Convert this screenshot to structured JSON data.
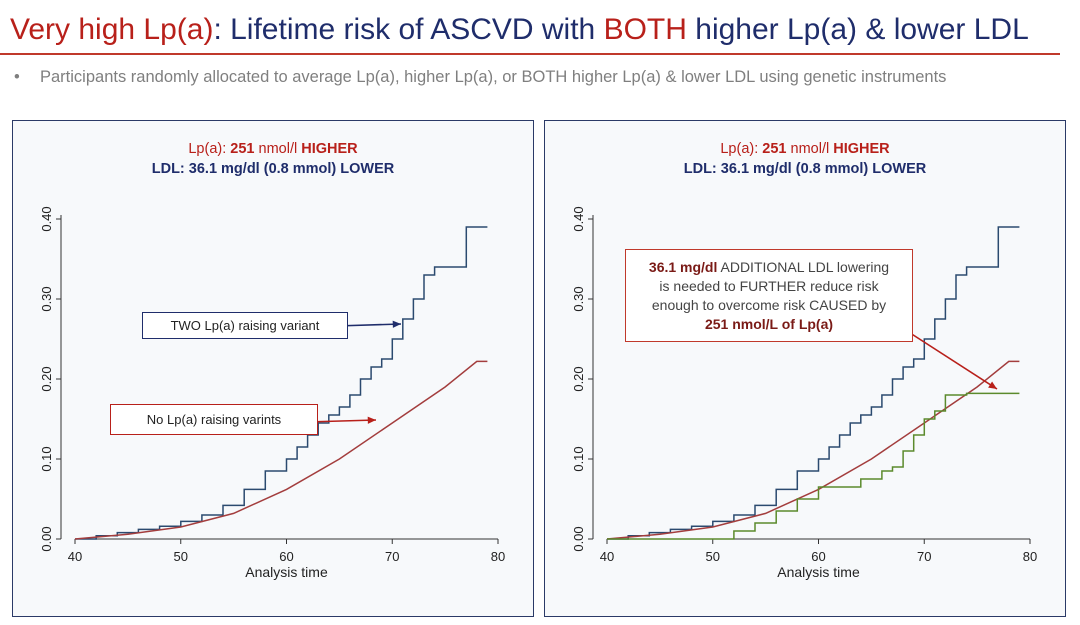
{
  "title": {
    "highlight": "Very high Lp(a)",
    "part1": ": Lifetime risk of ASCVD with ",
    "both": "BOTH",
    "part2": " higher Lp(a) & lower LDL"
  },
  "bullet": "Participants randomly allocated to average Lp(a), higher Lp(a), or BOTH higher Lp(a) & lower LDL using genetic instruments",
  "panels": [
    {
      "subtitle": {
        "prefix": "Lp(a): ",
        "value": "251",
        "unit": " nmol/l ",
        "tag": "HIGHER"
      },
      "ldl_line": "LDL: 36.1 mg/dl (0.8 mmol) LOWER",
      "annotations": {
        "two": "TWO Lp(a) raising variant",
        "no": "No Lp(a) raising varints"
      }
    },
    {
      "subtitle": {
        "prefix": "Lp(a): ",
        "value": "251",
        "unit": " nmol/l ",
        "tag": "HIGHER"
      },
      "ldl_line": "LDL: 36.1 mg/dl (0.8 mmol) LOWER",
      "annotation": {
        "l1_bold": "36.1 mg/dl",
        "l1_rest": " ADDITIONAL LDL lowering",
        "l2": "is needed to FURTHER reduce risk",
        "l3": "enough to overcome risk CAUSED by",
        "l4_bold": "251 nmol/L of Lp(a)"
      }
    }
  ],
  "chart_data": [
    {
      "type": "line",
      "xlabel": "Analysis time",
      "xlim": [
        40,
        80
      ],
      "ylim": [
        0,
        0.4
      ],
      "xticks": [
        "40",
        "50",
        "60",
        "70",
        "80"
      ],
      "yticks": [
        "0.00",
        "0.10",
        "0.20",
        "0.30",
        "0.40"
      ],
      "series": [
        {
          "key": "two",
          "color": "#2b4a6f",
          "step": true,
          "x": [
            40,
            42,
            44,
            46,
            48,
            50,
            52,
            54,
            56,
            58,
            60,
            61,
            62,
            63,
            64,
            65,
            66,
            67,
            68,
            69,
            70,
            71,
            72,
            73,
            74,
            75,
            76,
            77,
            78,
            79
          ],
          "y": [
            0,
            0.004,
            0.008,
            0.012,
            0.016,
            0.022,
            0.03,
            0.042,
            0.062,
            0.085,
            0.1,
            0.115,
            0.13,
            0.145,
            0.155,
            0.165,
            0.18,
            0.2,
            0.215,
            0.225,
            0.25,
            0.275,
            0.3,
            0.33,
            0.34,
            0.34,
            0.34,
            0.39,
            0.39,
            0.39
          ]
        },
        {
          "key": "no",
          "color": "#a33d3d",
          "step": false,
          "x": [
            40,
            45,
            50,
            55,
            60,
            65,
            70,
            75,
            78,
            79
          ],
          "y": [
            0,
            0.006,
            0.015,
            0.032,
            0.062,
            0.1,
            0.145,
            0.19,
            0.222,
            0.222
          ]
        }
      ]
    },
    {
      "type": "line",
      "xlabel": "Analysis time",
      "xlim": [
        40,
        80
      ],
      "ylim": [
        0,
        0.4
      ],
      "xticks": [
        "40",
        "50",
        "60",
        "70",
        "80"
      ],
      "yticks": [
        "0.00",
        "0.10",
        "0.20",
        "0.30",
        "0.40"
      ],
      "series": [
        {
          "key": "two",
          "color": "#2b4a6f",
          "step": true,
          "x": [
            40,
            42,
            44,
            46,
            48,
            50,
            52,
            54,
            56,
            58,
            60,
            61,
            62,
            63,
            64,
            65,
            66,
            67,
            68,
            69,
            70,
            71,
            72,
            73,
            74,
            75,
            76,
            77,
            78,
            79
          ],
          "y": [
            0,
            0.004,
            0.008,
            0.012,
            0.016,
            0.022,
            0.03,
            0.042,
            0.062,
            0.085,
            0.1,
            0.115,
            0.13,
            0.145,
            0.155,
            0.165,
            0.18,
            0.2,
            0.215,
            0.225,
            0.25,
            0.275,
            0.3,
            0.33,
            0.34,
            0.34,
            0.34,
            0.39,
            0.39,
            0.39
          ]
        },
        {
          "key": "no",
          "color": "#a33d3d",
          "step": false,
          "x": [
            40,
            45,
            50,
            55,
            60,
            65,
            70,
            75,
            78,
            79
          ],
          "y": [
            0,
            0.006,
            0.015,
            0.032,
            0.062,
            0.1,
            0.145,
            0.19,
            0.222,
            0.222
          ]
        },
        {
          "key": "both",
          "color": "#5b8a2c",
          "step": true,
          "x": [
            40,
            50,
            52,
            54,
            56,
            58,
            60,
            62,
            64,
            66,
            67,
            68,
            69,
            70,
            71,
            72,
            73,
            74,
            79
          ],
          "y": [
            0,
            0,
            0.01,
            0.02,
            0.035,
            0.05,
            0.065,
            0.065,
            0.075,
            0.085,
            0.09,
            0.11,
            0.13,
            0.15,
            0.16,
            0.18,
            0.18,
            0.182,
            0.182
          ]
        }
      ]
    }
  ]
}
